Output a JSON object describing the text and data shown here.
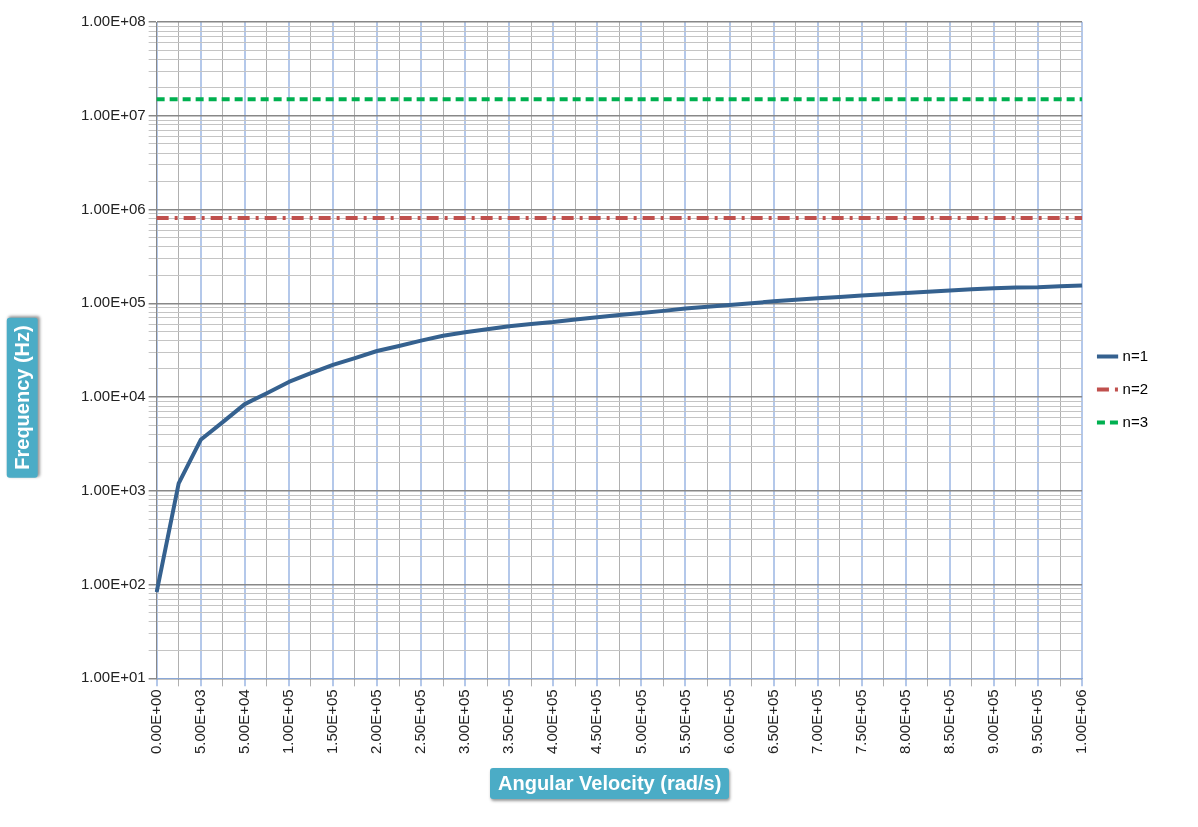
{
  "chart_data": {
    "type": "line",
    "xlabel": "Angular Velocity (rad/s)",
    "ylabel": "Frequency (Hz)",
    "categories": [
      "0.00E+00",
      null,
      "5.00E+03",
      null,
      "5.00E+04",
      null,
      "1.00E+05",
      null,
      "1.50E+05",
      null,
      "2.00E+05",
      null,
      "2.50E+05",
      null,
      "3.00E+05",
      null,
      "3.50E+05",
      null,
      "4.00E+05",
      null,
      "4.50E+05",
      null,
      "5.00E+05",
      null,
      "5.50E+05",
      null,
      "6.00E+05",
      null,
      "6.50E+05",
      null,
      "7.00E+05",
      null,
      "7.50E+05",
      null,
      "8.00E+05",
      null,
      "8.50E+05",
      null,
      "9.00E+05",
      null,
      "9.50E+05",
      null,
      "1.00E+06"
    ],
    "log": "y",
    "ylim": [
      10,
      100000000
    ],
    "yticks": [
      {
        "value": 10,
        "label": "1.00E+01"
      },
      {
        "value": 20,
        "label": null
      },
      {
        "value": 30,
        "label": null
      },
      {
        "value": 40,
        "label": null
      },
      {
        "value": 50,
        "label": null
      },
      {
        "value": 60,
        "label": null
      },
      {
        "value": 70,
        "label": null
      },
      {
        "value": 80,
        "label": null
      },
      {
        "value": 90,
        "label": null
      },
      {
        "value": 100,
        "label": "1.00E+02"
      },
      {
        "value": 200,
        "label": null
      },
      {
        "value": 300,
        "label": null
      },
      {
        "value": 400,
        "label": null
      },
      {
        "value": 500,
        "label": null
      },
      {
        "value": 600,
        "label": null
      },
      {
        "value": 700,
        "label": null
      },
      {
        "value": 800,
        "label": null
      },
      {
        "value": 900,
        "label": null
      },
      {
        "value": 1000,
        "label": "1.00E+03"
      },
      {
        "value": 2000,
        "label": null
      },
      {
        "value": 3000,
        "label": null
      },
      {
        "value": 4000,
        "label": null
      },
      {
        "value": 5000,
        "label": null
      },
      {
        "value": 6000,
        "label": null
      },
      {
        "value": 7000,
        "label": null
      },
      {
        "value": 8000,
        "label": null
      },
      {
        "value": 9000,
        "label": null
      },
      {
        "value": 10000,
        "label": "1.00E+04"
      },
      {
        "value": 20000,
        "label": null
      },
      {
        "value": 30000,
        "label": null
      },
      {
        "value": 40000,
        "label": null
      },
      {
        "value": 50000,
        "label": null
      },
      {
        "value": 60000,
        "label": null
      },
      {
        "value": 70000,
        "label": null
      },
      {
        "value": 80000,
        "label": null
      },
      {
        "value": 90000,
        "label": null
      },
      {
        "value": 100000,
        "label": "1.00E+05"
      },
      {
        "value": 200000,
        "label": null
      },
      {
        "value": 300000,
        "label": null
      },
      {
        "value": 400000,
        "label": null
      },
      {
        "value": 500000,
        "label": null
      },
      {
        "value": 600000,
        "label": null
      },
      {
        "value": 700000,
        "label": null
      },
      {
        "value": 800000,
        "label": null
      },
      {
        "value": 900000,
        "label": null
      },
      {
        "value": 1000000,
        "label": "1.00E+06"
      },
      {
        "value": 2000000,
        "label": null
      },
      {
        "value": 3000000,
        "label": null
      },
      {
        "value": 4000000,
        "label": null
      },
      {
        "value": 5000000,
        "label": null
      },
      {
        "value": 6000000,
        "label": null
      },
      {
        "value": 7000000,
        "label": null
      },
      {
        "value": 8000000,
        "label": null
      },
      {
        "value": 9000000,
        "label": null
      },
      {
        "value": 10000000,
        "label": "1.00E+07"
      },
      {
        "value": 20000000,
        "label": null
      },
      {
        "value": 30000000,
        "label": null
      },
      {
        "value": 40000000,
        "label": null
      },
      {
        "value": 50000000,
        "label": null
      },
      {
        "value": 60000000,
        "label": null
      },
      {
        "value": 70000000,
        "label": null
      },
      {
        "value": 80000000,
        "label": null
      },
      {
        "value": 90000000,
        "label": null
      },
      {
        "value": 100000000,
        "label": "1.00E+08"
      }
    ],
    "grid": true,
    "legend": "right",
    "marker": "none",
    "series": [
      {
        "name": "n=1",
        "color": "#35618f",
        "line_style": "solid",
        "values": [
          83,
          1200,
          3500,
          5400,
          8400,
          11000,
          14500,
          18000,
          22000,
          26000,
          31000,
          35000,
          40000,
          45000,
          49000,
          53000,
          57000,
          60000,
          63000,
          67000,
          71000,
          75000,
          79000,
          83000,
          88000,
          92000,
          96000,
          100000,
          105000,
          109000,
          113000,
          117000,
          121000,
          125000,
          129000,
          133000,
          137000,
          141000,
          145000,
          147000,
          148000,
          152000,
          155000
        ]
      },
      {
        "name": "n=2",
        "color": "#c0504d",
        "line_style": "dashdot",
        "values": [
          810000,
          810000,
          810000,
          810000,
          810000,
          810000,
          810000,
          810000,
          810000,
          810000,
          810000,
          810000,
          810000,
          810000,
          810000,
          810000,
          810000,
          810000,
          810000,
          810000,
          810000,
          810000,
          810000,
          810000,
          810000,
          810000,
          810000,
          810000,
          810000,
          810000,
          810000,
          810000,
          810000,
          810000,
          810000,
          810000,
          810000,
          810000,
          810000,
          810000,
          810000,
          810000,
          810000
        ]
      },
      {
        "name": "n=3",
        "color": "#00b050",
        "line_style": "dashed",
        "values": [
          15000000,
          15000000,
          15000000,
          15000000,
          15000000,
          15000000,
          15000000,
          15000000,
          15000000,
          15000000,
          15000000,
          15000000,
          15000000,
          15000000,
          15000000,
          15000000,
          15000000,
          15000000,
          15000000,
          15000000,
          15000000,
          15000000,
          15000000,
          15000000,
          15000000,
          15000000,
          15000000,
          15000000,
          15000000,
          15000000,
          15000000,
          15000000,
          15000000,
          15000000,
          15000000,
          15000000,
          15000000,
          15000000,
          15000000,
          15000000,
          15000000,
          15000000,
          15000000
        ]
      }
    ]
  }
}
